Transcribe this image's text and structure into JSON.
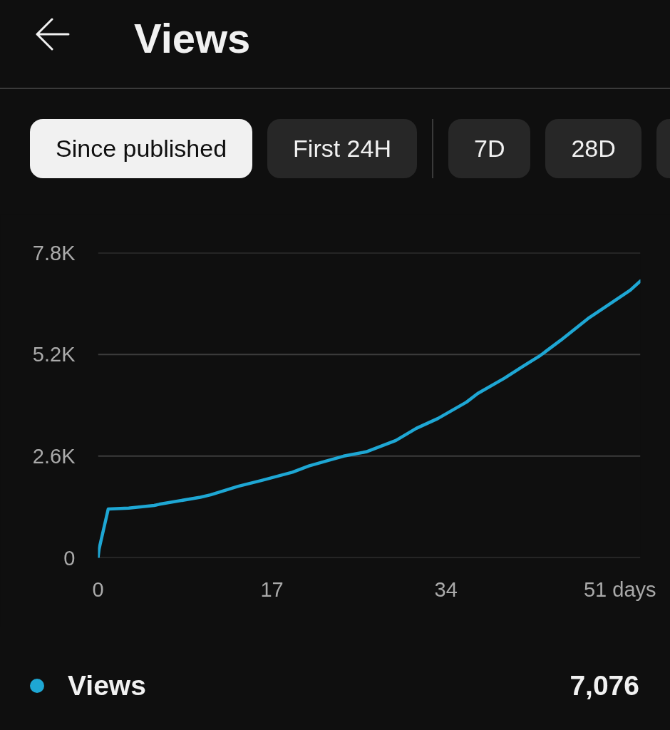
{
  "chart_data": {
    "type": "line",
    "title": "Views",
    "annotations": [
      "Since published",
      "First 24H",
      "7D",
      "28D",
      "7,076"
    ],
    "x": [
      0,
      0.1,
      1,
      3,
      5.5,
      6,
      10,
      11,
      13.7,
      16,
      19,
      20.6,
      22.5,
      24,
      26.2,
      29.1,
      31.1,
      33.2,
      36,
      37.1,
      39.7,
      41.3,
      43.2,
      45.2,
      48,
      49.9,
      52,
      53
    ],
    "series": [
      {
        "name": "Views",
        "color": "#1ea7d4",
        "values": [
          0,
          220,
          1250,
          1270,
          1340,
          1370,
          1550,
          1610,
          1830,
          1980,
          2190,
          2350,
          2490,
          2600,
          2710,
          3000,
          3310,
          3560,
          3980,
          4200,
          4590,
          4860,
          5170,
          5560,
          6140,
          6470,
          6840,
          7076
        ]
      }
    ],
    "xlim": [
      0,
      53
    ],
    "xticks": [
      0,
      17,
      34,
      {
        "value": 51,
        "label": "51 days"
      }
    ],
    "ylim": [
      0,
      7800
    ],
    "yticks": [
      0,
      {
        "value": 2600,
        "label": "2.6K"
      },
      {
        "value": 5200,
        "label": "5.2K"
      },
      {
        "value": 7800,
        "label": "7.8K"
      }
    ],
    "grid": "y",
    "legend": "bottom"
  }
}
